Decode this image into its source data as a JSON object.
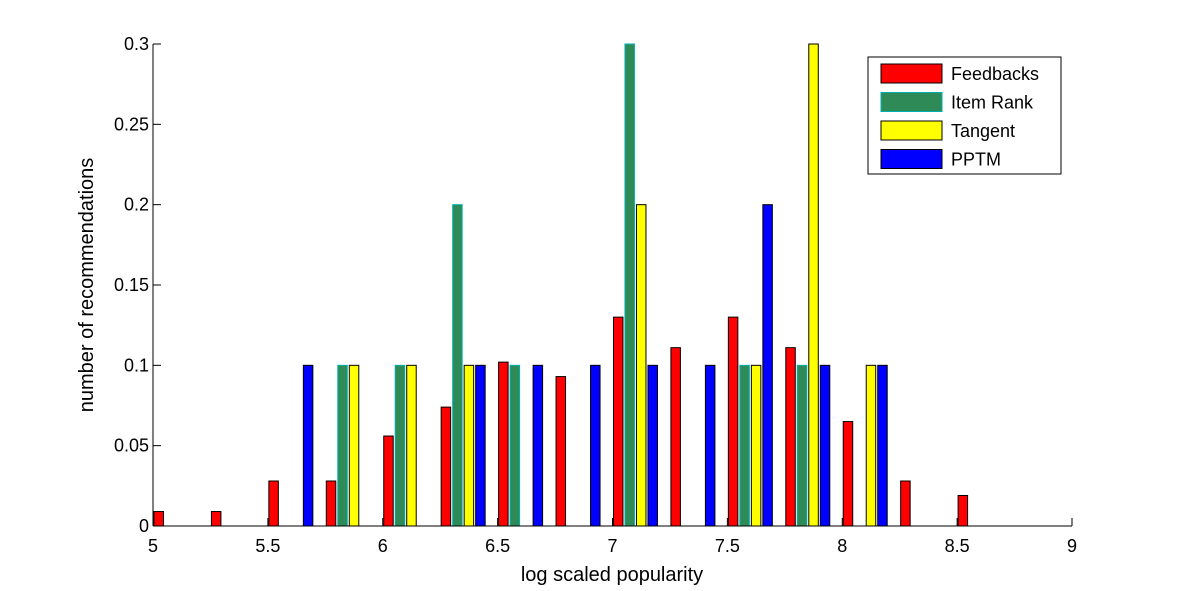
{
  "chart_data": {
    "type": "bar",
    "title": "",
    "xlabel": "log scaled popularity",
    "ylabel": "number of recommendations",
    "xlim": [
      5,
      9
    ],
    "ylim": [
      0,
      0.3
    ],
    "xticks": [
      "5",
      "5.5",
      "6",
      "6.5",
      "7",
      "7.5",
      "8",
      "8.5",
      "9"
    ],
    "yticks": [
      "0",
      "0.05",
      "0.1",
      "0.15",
      "0.2",
      "0.25",
      "0.3"
    ],
    "grid": false,
    "legend_position": "top-right",
    "bin_centers": [
      5.1,
      5.35,
      5.6,
      5.85,
      6.1,
      6.35,
      6.6,
      6.85,
      7.1,
      7.35,
      7.6,
      7.85,
      8.1,
      8.35,
      8.6,
      8.85
    ],
    "series": [
      {
        "name": "Feedbacks",
        "color": "#ff0000",
        "values": [
          0.009,
          0.009,
          0.028,
          0.028,
          0.056,
          0.074,
          0.102,
          0.093,
          0.13,
          0.111,
          0.13,
          0.111,
          0.065,
          0.028,
          0.019,
          0
        ]
      },
      {
        "name": "Item Rank",
        "color": "#2e8b57",
        "edge": "#00b0b0",
        "values": [
          0,
          0,
          0,
          0.1,
          0.1,
          0.2,
          0.1,
          0,
          0.3,
          0,
          0.1,
          0.1,
          0,
          0,
          0,
          0
        ]
      },
      {
        "name": "Tangent",
        "color": "#ffff00",
        "values": [
          0,
          0,
          0,
          0.1,
          0.1,
          0.1,
          0,
          0,
          0.2,
          0,
          0.1,
          0.3,
          0.1,
          0,
          0,
          0
        ]
      },
      {
        "name": "PPTM",
        "color": "#0000ff",
        "values": [
          0,
          0,
          0.1,
          0,
          0,
          0.1,
          0.1,
          0.1,
          0.1,
          0.1,
          0.2,
          0.1,
          0.1,
          0,
          0,
          0
        ]
      }
    ]
  }
}
